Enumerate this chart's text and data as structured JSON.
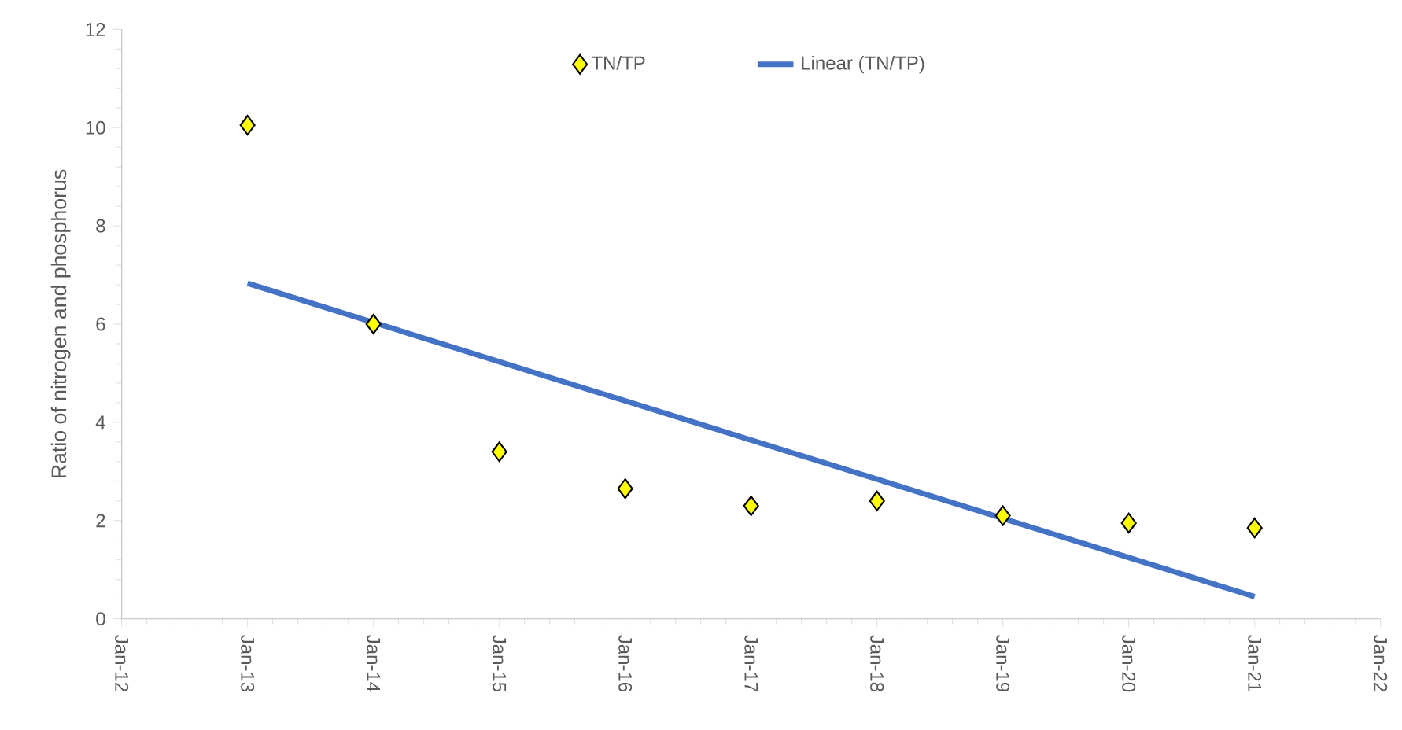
{
  "chart_data": {
    "type": "scatter",
    "ylabel": "Ratio of nitrogen and  phosphorus",
    "x": [
      "2013-01-01",
      "2014-01-01",
      "2015-01-01",
      "2016-01-01",
      "2017-01-01",
      "2018-01-01",
      "2019-01-01",
      "2020-01-01",
      "2021-01-01"
    ],
    "series": [
      {
        "name": "TN/TP",
        "color": "#ffff00",
        "marker": "diamond",
        "values": [
          10.05,
          6.0,
          3.4,
          2.65,
          2.3,
          2.4,
          2.1,
          1.95,
          1.85
        ]
      },
      {
        "name": "Linear (TN/TP)",
        "type": "line",
        "color": "#4472c4",
        "marker": "none",
        "line_style": "solid",
        "x": [
          "2013-01-01",
          "2021-01-01"
        ],
        "values": [
          6.83,
          0.45
        ]
      }
    ],
    "xlim": [
      "2012-01-01",
      "2022-01-01"
    ],
    "xticks": [
      {
        "value": "2012-01-01",
        "label": "Jan-12"
      },
      {
        "value": "2013-01-01",
        "label": "Jan-13"
      },
      {
        "value": "2014-01-01",
        "label": "Jan-14"
      },
      {
        "value": "2015-01-01",
        "label": "Jan-15"
      },
      {
        "value": "2016-01-01",
        "label": "Jan-16"
      },
      {
        "value": "2017-01-01",
        "label": "Jan-17"
      },
      {
        "value": "2018-01-01",
        "label": "Jan-18"
      },
      {
        "value": "2019-01-01",
        "label": "Jan-19"
      },
      {
        "value": "2020-01-01",
        "label": "Jan-20"
      },
      {
        "value": "2021-01-01",
        "label": "Jan-21"
      },
      {
        "value": "2022-01-01",
        "label": "Jan-22"
      }
    ],
    "ylim": [
      0,
      12
    ],
    "yticks": [
      0,
      2,
      4,
      6,
      8,
      10,
      12
    ],
    "grid": false,
    "legend": "top"
  }
}
